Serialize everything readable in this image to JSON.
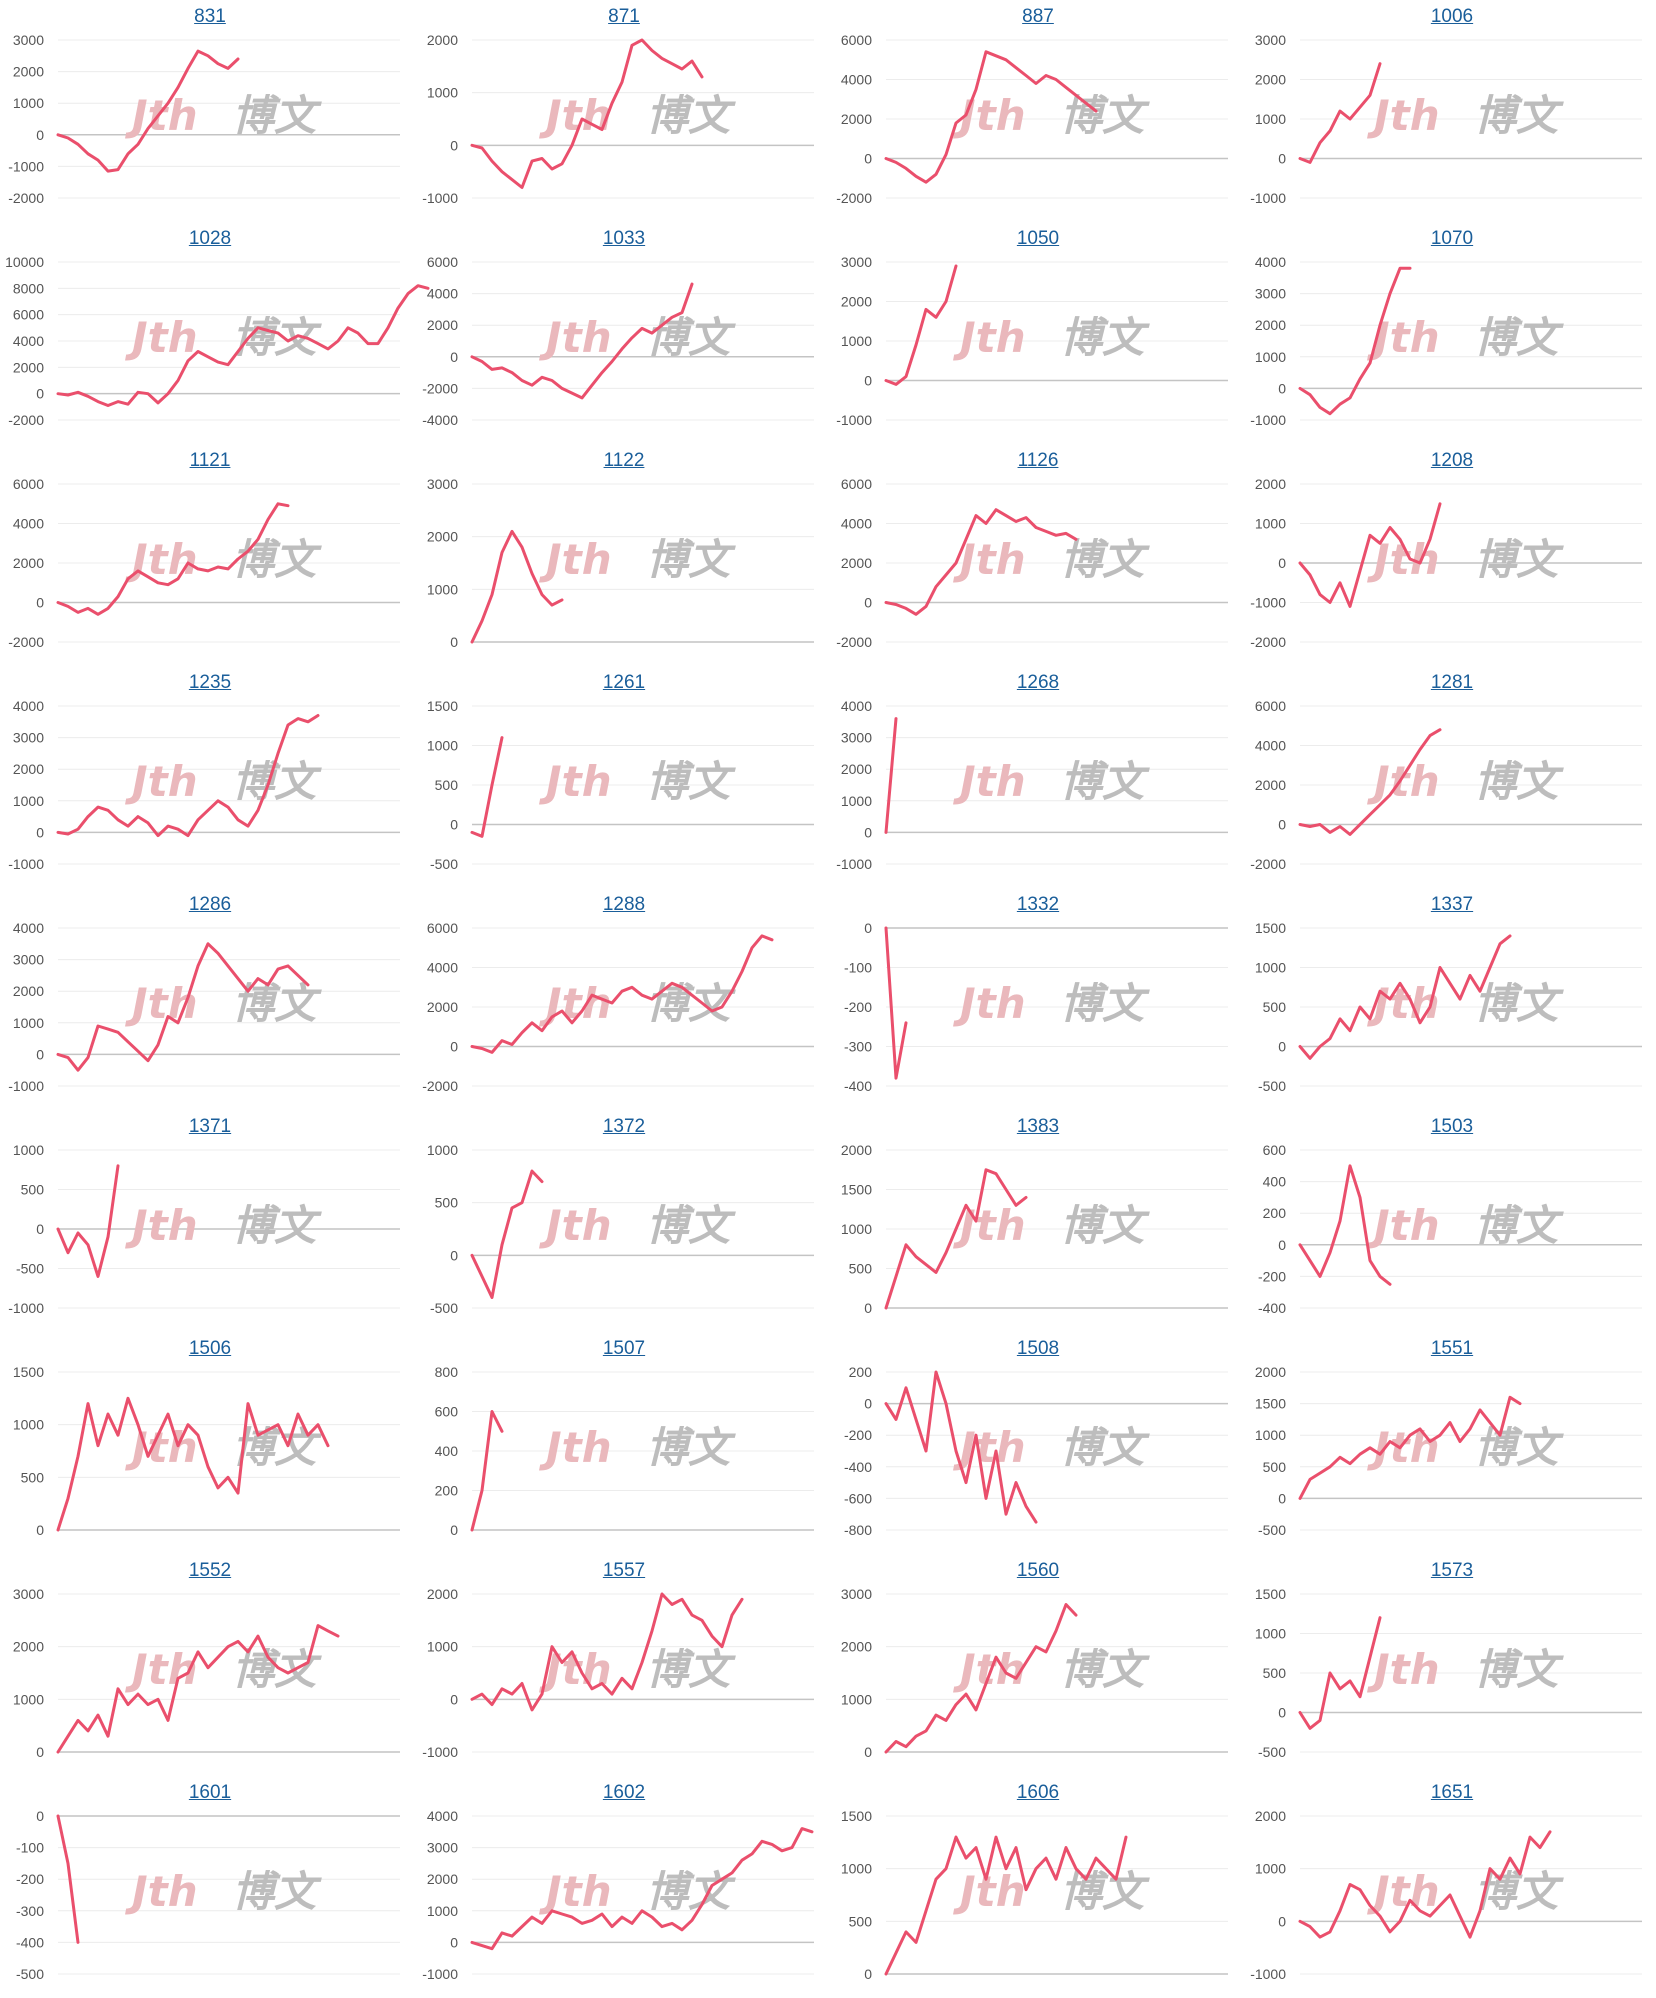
{
  "page": {
    "watermark_color_primary": "#eab8bc",
    "watermark_color_secondary": "#bdbdbd",
    "line_color": "#ea4f6c",
    "title_color": "#1a5e9a"
  },
  "chart_data": [
    {
      "type": "line",
      "title": "831",
      "yticks": [
        3000,
        2000,
        1000,
        0,
        -1000,
        -2000
      ],
      "ylim": [
        -2000,
        3000
      ],
      "values": [
        0,
        -100,
        -300,
        -600,
        -800,
        -1150,
        -1100,
        -600,
        -300,
        200,
        600,
        1000,
        1500,
        2100,
        2650,
        2500,
        2250,
        2100,
        2400
      ]
    },
    {
      "type": "line",
      "title": "871",
      "yticks": [
        2000,
        1000,
        0,
        -1000
      ],
      "ylim": [
        -1000,
        2000
      ],
      "values": [
        0,
        -50,
        -300,
        -500,
        -650,
        -800,
        -300,
        -250,
        -450,
        -350,
        0,
        500,
        400,
        300,
        800,
        1200,
        1900,
        2000,
        1800,
        1650,
        1550,
        1450,
        1600,
        1300
      ]
    },
    {
      "type": "line",
      "title": "887",
      "yticks": [
        6000,
        4000,
        2000,
        0,
        -2000
      ],
      "ylim": [
        -2000,
        6000
      ],
      "values": [
        0,
        -200,
        -500,
        -900,
        -1200,
        -800,
        200,
        1800,
        2200,
        3500,
        5400,
        5200,
        5000,
        4600,
        4200,
        3800,
        4200,
        4000,
        3600,
        3200,
        2800,
        2400
      ]
    },
    {
      "type": "line",
      "title": "1006",
      "yticks": [
        3000,
        2000,
        1000,
        0,
        -1000
      ],
      "ylim": [
        -1000,
        3000
      ],
      "values": [
        0,
        -100,
        400,
        700,
        1200,
        1000,
        1300,
        1600,
        2400
      ]
    },
    {
      "type": "line",
      "title": "1028",
      "yticks": [
        10000,
        8000,
        6000,
        4000,
        2000,
        0,
        -2000
      ],
      "ylim": [
        -2000,
        10000
      ],
      "values": [
        0,
        -100,
        100,
        -200,
        -600,
        -900,
        -600,
        -800,
        100,
        0,
        -700,
        0,
        1000,
        2500,
        3200,
        2800,
        2400,
        2200,
        3200,
        4200,
        5000,
        4800,
        4600,
        4000,
        4400,
        4200,
        3800,
        3400,
        4000,
        5000,
        4600,
        3800,
        3800,
        5000,
        6500,
        7600,
        8200,
        8000
      ]
    },
    {
      "type": "line",
      "title": "1033",
      "yticks": [
        6000,
        4000,
        2000,
        0,
        -2000,
        -4000
      ],
      "ylim": [
        -4000,
        6000
      ],
      "values": [
        0,
        -300,
        -800,
        -700,
        -1000,
        -1500,
        -1800,
        -1300,
        -1500,
        -2000,
        -2300,
        -2600,
        -1800,
        -1000,
        -300,
        500,
        1200,
        1800,
        1500,
        2000,
        2500,
        2800,
        4600
      ]
    },
    {
      "type": "line",
      "title": "1050",
      "yticks": [
        3000,
        2000,
        1000,
        0,
        -1000
      ],
      "ylim": [
        -1000,
        3000
      ],
      "values": [
        0,
        -100,
        100,
        900,
        1800,
        1600,
        2000,
        2900
      ]
    },
    {
      "type": "line",
      "title": "1070",
      "yticks": [
        4000,
        3000,
        2000,
        1000,
        0,
        -1000
      ],
      "ylim": [
        -1000,
        4000
      ],
      "values": [
        0,
        -200,
        -600,
        -800,
        -500,
        -300,
        300,
        800,
        2000,
        3000,
        3800,
        3800
      ]
    },
    {
      "type": "line",
      "title": "1121",
      "yticks": [
        6000,
        4000,
        2000,
        0,
        -2000
      ],
      "ylim": [
        -2000,
        6000
      ],
      "values": [
        0,
        -200,
        -500,
        -300,
        -600,
        -300,
        300,
        1200,
        1600,
        1300,
        1000,
        900,
        1200,
        2000,
        1700,
        1600,
        1800,
        1700,
        2200,
        2600,
        3200,
        4200,
        5000,
        4900
      ]
    },
    {
      "type": "line",
      "title": "1122",
      "yticks": [
        3000,
        2000,
        1000,
        0
      ],
      "ylim": [
        0,
        3000
      ],
      "values": [
        0,
        400,
        900,
        1700,
        2100,
        1800,
        1300,
        900,
        700,
        800
      ]
    },
    {
      "type": "line",
      "title": "1126",
      "yticks": [
        6000,
        4000,
        2000,
        0,
        -2000
      ],
      "ylim": [
        -2000,
        6000
      ],
      "values": [
        0,
        -100,
        -300,
        -600,
        -200,
        800,
        1400,
        2000,
        3200,
        4400,
        4000,
        4700,
        4400,
        4100,
        4300,
        3800,
        3600,
        3400,
        3500,
        3200
      ]
    },
    {
      "type": "line",
      "title": "1208",
      "yticks": [
        2000,
        1000,
        0,
        -1000,
        -2000
      ],
      "ylim": [
        -2000,
        2000
      ],
      "values": [
        0,
        -300,
        -800,
        -1000,
        -500,
        -1100,
        -200,
        700,
        500,
        900,
        600,
        100,
        0,
        600,
        1500
      ]
    },
    {
      "type": "line",
      "title": "1235",
      "yticks": [
        4000,
        3000,
        2000,
        1000,
        0,
        -1000
      ],
      "ylim": [
        -1000,
        4000
      ],
      "values": [
        0,
        -50,
        100,
        500,
        800,
        700,
        400,
        200,
        500,
        300,
        -100,
        200,
        100,
        -100,
        400,
        700,
        1000,
        800,
        400,
        200,
        700,
        1500,
        2500,
        3400,
        3600,
        3500,
        3700
      ]
    },
    {
      "type": "line",
      "title": "1261",
      "yticks": [
        1500,
        1000,
        500,
        0,
        -500
      ],
      "ylim": [
        -500,
        1500
      ],
      "values": [
        -100,
        -150,
        500,
        1100
      ]
    },
    {
      "type": "line",
      "title": "1268",
      "yticks": [
        4000,
        3000,
        2000,
        1000,
        0,
        -1000
      ],
      "ylim": [
        -1000,
        4000
      ],
      "values": [
        0,
        3600
      ]
    },
    {
      "type": "line",
      "title": "1281",
      "yticks": [
        6000,
        4000,
        2000,
        0,
        -2000
      ],
      "ylim": [
        -2000,
        6000
      ],
      "values": [
        0,
        -100,
        0,
        -400,
        -100,
        -500,
        0,
        500,
        1000,
        1500,
        2200,
        3000,
        3800,
        4500,
        4800
      ]
    },
    {
      "type": "line",
      "title": "1286",
      "yticks": [
        4000,
        3000,
        2000,
        1000,
        0,
        -1000
      ],
      "ylim": [
        -1000,
        4000
      ],
      "values": [
        0,
        -100,
        -500,
        -100,
        900,
        800,
        700,
        400,
        100,
        -200,
        300,
        1200,
        1000,
        1800,
        2800,
        3500,
        3200,
        2800,
        2400,
        2000,
        2400,
        2200,
        2700,
        2800,
        2500,
        2200
      ]
    },
    {
      "type": "line",
      "title": "1288",
      "yticks": [
        6000,
        4000,
        2000,
        0,
        -2000
      ],
      "ylim": [
        -2000,
        6000
      ],
      "values": [
        0,
        -100,
        -300,
        300,
        100,
        700,
        1200,
        800,
        1500,
        1800,
        1200,
        1800,
        2600,
        2400,
        2200,
        2800,
        3000,
        2600,
        2400,
        2800,
        3200,
        3000,
        2600,
        2200,
        1800,
        2000,
        2800,
        3800,
        5000,
        5600,
        5400
      ]
    },
    {
      "type": "line",
      "title": "1332",
      "yticks": [
        0,
        -100,
        -200,
        -300,
        -400
      ],
      "ylim": [
        -400,
        0
      ],
      "values": [
        0,
        -380,
        -240
      ]
    },
    {
      "type": "line",
      "title": "1337",
      "yticks": [
        1500,
        1000,
        500,
        0,
        -500
      ],
      "ylim": [
        -500,
        1500
      ],
      "values": [
        0,
        -150,
        0,
        100,
        350,
        200,
        500,
        350,
        700,
        600,
        800,
        600,
        300,
        500,
        1000,
        800,
        600,
        900,
        700,
        1000,
        1300,
        1400
      ]
    },
    {
      "type": "line",
      "title": "1371",
      "yticks": [
        1000,
        500,
        0,
        -500,
        -1000
      ],
      "ylim": [
        -1000,
        1000
      ],
      "values": [
        0,
        -300,
        -50,
        -200,
        -600,
        -100,
        800
      ]
    },
    {
      "type": "line",
      "title": "1372",
      "yticks": [
        1000,
        500,
        0,
        -500
      ],
      "ylim": [
        -500,
        1000
      ],
      "values": [
        0,
        -200,
        -400,
        100,
        450,
        500,
        800,
        700
      ]
    },
    {
      "type": "line",
      "title": "1383",
      "yticks": [
        2000,
        1500,
        1000,
        500,
        0
      ],
      "ylim": [
        0,
        2000
      ],
      "values": [
        0,
        400,
        800,
        650,
        550,
        450,
        700,
        1000,
        1300,
        1100,
        1750,
        1700,
        1500,
        1300,
        1400
      ]
    },
    {
      "type": "line",
      "title": "1503",
      "yticks": [
        600,
        400,
        200,
        0,
        -200,
        -400
      ],
      "ylim": [
        -400,
        600
      ],
      "values": [
        0,
        -100,
        -200,
        -50,
        150,
        500,
        300,
        -100,
        -200,
        -250
      ]
    },
    {
      "type": "line",
      "title": "1506",
      "yticks": [
        1500,
        1000,
        500,
        0
      ],
      "ylim": [
        0,
        1500
      ],
      "values": [
        0,
        300,
        700,
        1200,
        800,
        1100,
        900,
        1250,
        1000,
        700,
        900,
        1100,
        800,
        1000,
        900,
        600,
        400,
        500,
        350,
        1200,
        900,
        950,
        1000,
        800,
        1100,
        900,
        1000,
        800
      ]
    },
    {
      "type": "line",
      "title": "1507",
      "yticks": [
        800,
        600,
        400,
        200,
        0
      ],
      "ylim": [
        0,
        800
      ],
      "values": [
        0,
        200,
        600,
        500
      ]
    },
    {
      "type": "line",
      "title": "1508",
      "yticks": [
        200,
        0,
        -200,
        -400,
        -600,
        -800
      ],
      "ylim": [
        -800,
        200
      ],
      "values": [
        0,
        -100,
        100,
        -100,
        -300,
        200,
        0,
        -300,
        -500,
        -200,
        -600,
        -300,
        -700,
        -500,
        -650,
        -750
      ]
    },
    {
      "type": "line",
      "title": "1551",
      "yticks": [
        2000,
        1500,
        1000,
        500,
        0,
        -500
      ],
      "ylim": [
        -500,
        2000
      ],
      "values": [
        0,
        300,
        400,
        500,
        650,
        550,
        700,
        800,
        700,
        900,
        800,
        1000,
        1100,
        900,
        1000,
        1200,
        900,
        1100,
        1400,
        1200,
        1000,
        1600,
        1500
      ]
    },
    {
      "type": "line",
      "title": "1552",
      "yticks": [
        3000,
        2000,
        1000,
        0
      ],
      "ylim": [
        0,
        3000
      ],
      "values": [
        0,
        300,
        600,
        400,
        700,
        300,
        1200,
        900,
        1100,
        900,
        1000,
        600,
        1400,
        1500,
        1900,
        1600,
        1800,
        2000,
        2100,
        1900,
        2200,
        1800,
        1600,
        1500,
        1600,
        1700,
        2400,
        2300,
        2200
      ]
    },
    {
      "type": "line",
      "title": "1557",
      "yticks": [
        2000,
        1000,
        0,
        -1000
      ],
      "ylim": [
        -1000,
        2000
      ],
      "values": [
        0,
        100,
        -100,
        200,
        100,
        300,
        -200,
        100,
        1000,
        700,
        900,
        500,
        200,
        300,
        100,
        400,
        200,
        700,
        1300,
        2000,
        1800,
        1900,
        1600,
        1500,
        1200,
        1000,
        1600,
        1900
      ]
    },
    {
      "type": "line",
      "title": "1560",
      "yticks": [
        3000,
        2000,
        1000,
        0
      ],
      "ylim": [
        0,
        3000
      ],
      "values": [
        0,
        200,
        100,
        300,
        400,
        700,
        600,
        900,
        1100,
        800,
        1300,
        1800,
        1500,
        1400,
        1700,
        2000,
        1900,
        2300,
        2800,
        2600
      ]
    },
    {
      "type": "line",
      "title": "1573",
      "yticks": [
        1500,
        1000,
        500,
        0,
        -500
      ],
      "ylim": [
        -500,
        1500
      ],
      "values": [
        0,
        -200,
        -100,
        500,
        300,
        400,
        200,
        700,
        1200
      ]
    },
    {
      "type": "line",
      "title": "1601",
      "yticks": [
        0,
        -100,
        -200,
        -300,
        -400,
        -500
      ],
      "ylim": [
        -500,
        0
      ],
      "values": [
        0,
        -150,
        -400
      ]
    },
    {
      "type": "line",
      "title": "1602",
      "yticks": [
        4000,
        3000,
        2000,
        1000,
        0,
        -1000
      ],
      "ylim": [
        -1000,
        4000
      ],
      "values": [
        0,
        -100,
        -200,
        300,
        200,
        500,
        800,
        600,
        1000,
        900,
        800,
        600,
        700,
        900,
        500,
        800,
        600,
        1000,
        800,
        500,
        600,
        400,
        700,
        1200,
        1800,
        2000,
        2200,
        2600,
        2800,
        3200,
        3100,
        2900,
        3000,
        3600,
        3500
      ]
    },
    {
      "type": "line",
      "title": "1606",
      "yticks": [
        1500,
        1000,
        500,
        0
      ],
      "ylim": [
        0,
        1500
      ],
      "values": [
        0,
        200,
        400,
        300,
        600,
        900,
        1000,
        1300,
        1100,
        1200,
        900,
        1300,
        1000,
        1200,
        800,
        1000,
        1100,
        900,
        1200,
        1000,
        900,
        1100,
        1000,
        900,
        1300
      ]
    },
    {
      "type": "line",
      "title": "1651",
      "yticks": [
        2000,
        1000,
        0,
        -1000
      ],
      "ylim": [
        -1000,
        2000
      ],
      "values": [
        0,
        -100,
        -300,
        -200,
        200,
        700,
        600,
        300,
        100,
        -200,
        0,
        400,
        200,
        100,
        300,
        500,
        100,
        -300,
        200,
        1000,
        800,
        1200,
        900,
        1600,
        1400,
        1700
      ]
    }
  ]
}
